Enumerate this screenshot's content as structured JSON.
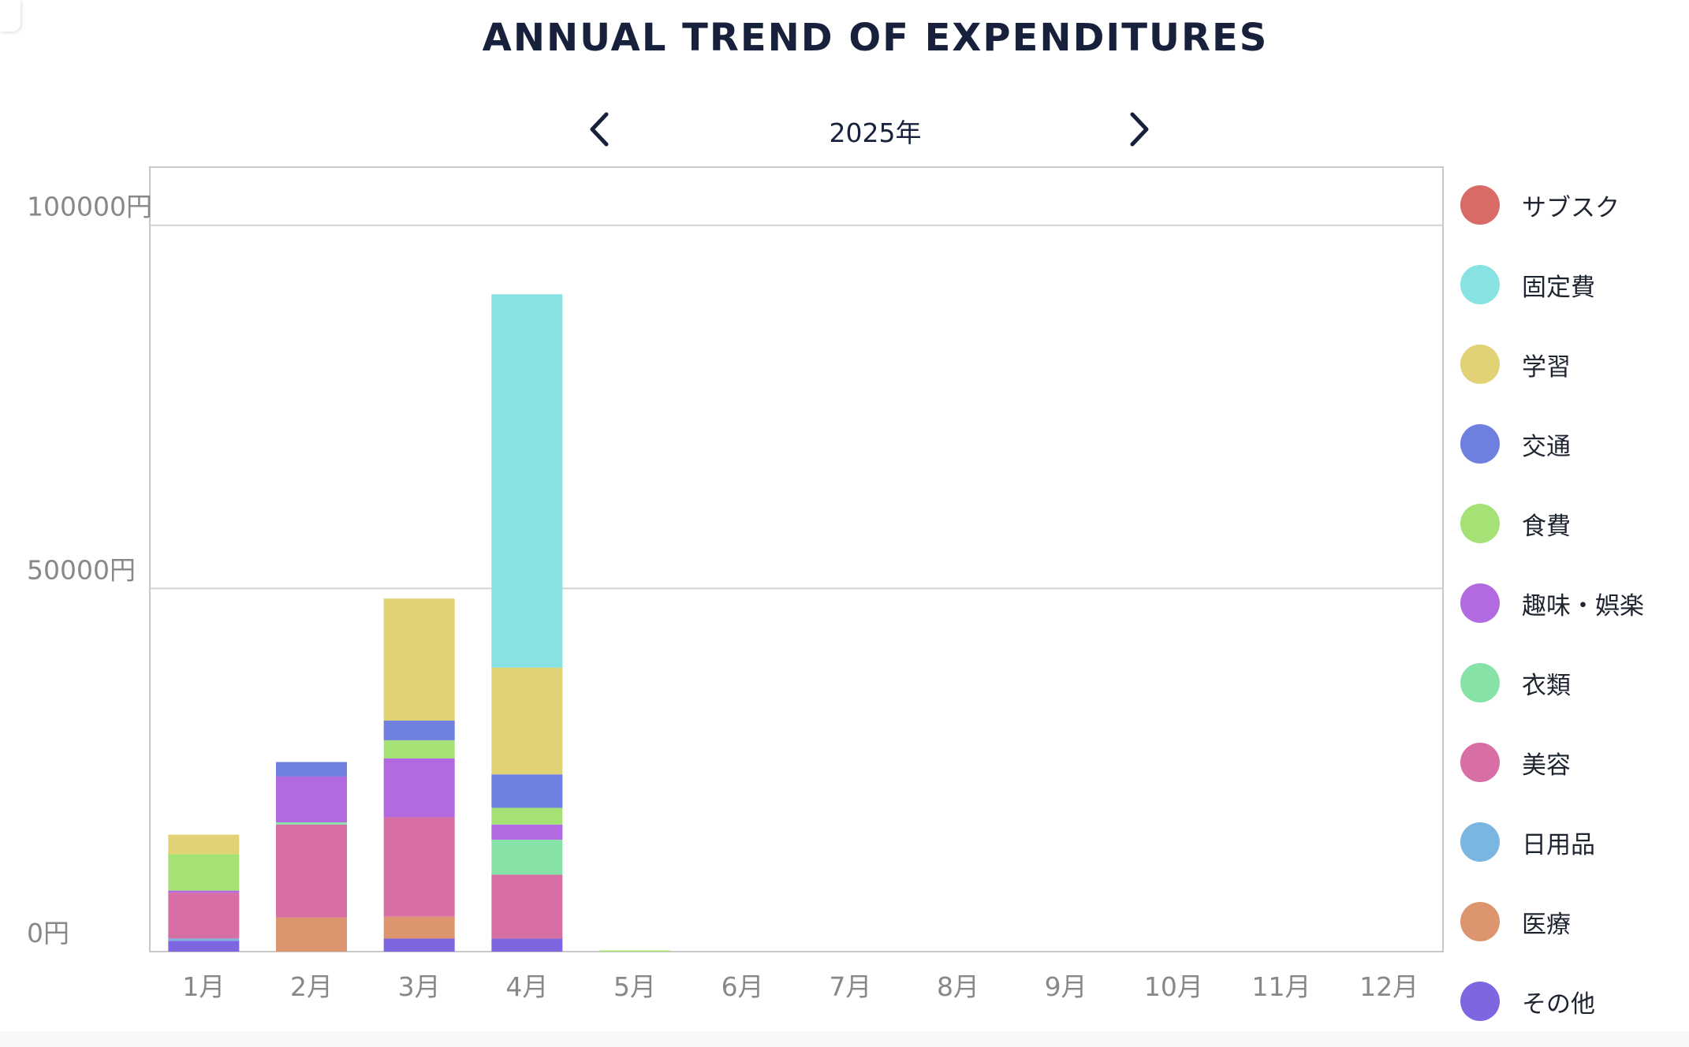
{
  "chart_data": {
    "type": "bar",
    "stacked": true,
    "title": "ANNUAL TREND OF EXPENDITURES",
    "period_label": "2025年",
    "categories": [
      "1月",
      "2月",
      "3月",
      "4月",
      "5月",
      "6月",
      "7月",
      "8月",
      "9月",
      "10月",
      "11月",
      "12月"
    ],
    "y_tick_labels": [
      "0円",
      "50000円",
      "100000円"
    ],
    "ylim": [
      0,
      108000
    ],
    "grid": true,
    "legend_position": "right",
    "series": [
      {
        "name": "その他",
        "color": "#7e66e0",
        "values": [
          1500,
          0,
          1800,
          1800,
          0,
          0,
          0,
          0,
          0,
          0,
          0,
          0
        ]
      },
      {
        "name": "医療",
        "color": "#dd9570",
        "values": [
          0,
          4700,
          3000,
          0,
          0,
          0,
          0,
          0,
          0,
          0,
          0,
          0
        ]
      },
      {
        "name": "日用品",
        "color": "#7ab6e0",
        "values": [
          300,
          0,
          0,
          0,
          0,
          0,
          0,
          0,
          0,
          0,
          0,
          0
        ]
      },
      {
        "name": "美容",
        "color": "#d76fa4",
        "values": [
          6300,
          12800,
          13700,
          8800,
          0,
          0,
          0,
          0,
          0,
          0,
          0,
          0
        ]
      },
      {
        "name": "衣類",
        "color": "#87e2a8",
        "values": [
          0,
          300,
          0,
          4800,
          0,
          0,
          0,
          0,
          0,
          0,
          0,
          0
        ]
      },
      {
        "name": "趣味・娯楽",
        "color": "#b16ae0",
        "values": [
          300,
          6300,
          8100,
          2100,
          0,
          0,
          0,
          0,
          0,
          0,
          0,
          0
        ]
      },
      {
        "name": "食費",
        "color": "#a4e275",
        "values": [
          5000,
          0,
          2500,
          2300,
          150,
          0,
          0,
          0,
          0,
          0,
          0,
          0
        ]
      },
      {
        "name": "交通",
        "color": "#6e7fe0",
        "values": [
          0,
          2000,
          2700,
          4600,
          0,
          0,
          0,
          0,
          0,
          0,
          0,
          0
        ]
      },
      {
        "name": "学習",
        "color": "#e0d275",
        "values": [
          2700,
          0,
          16800,
          14700,
          0,
          0,
          0,
          0,
          0,
          0,
          0,
          0
        ]
      },
      {
        "name": "固定費",
        "color": "#89e2e2",
        "values": [
          0,
          0,
          0,
          51400,
          0,
          0,
          0,
          0,
          0,
          0,
          0,
          0
        ]
      },
      {
        "name": "サブスク",
        "color": "#d96b66",
        "values": [
          0,
          0,
          0,
          0,
          0,
          0,
          0,
          0,
          0,
          0,
          0,
          0
        ]
      }
    ],
    "legend_order": [
      "サブスク",
      "固定費",
      "学習",
      "交通",
      "食費",
      "趣味・娯楽",
      "衣類",
      "美容",
      "日用品",
      "医療",
      "その他"
    ]
  },
  "icons": {
    "prev": "chevron-left-icon",
    "next": "chevron-right-icon"
  },
  "colors": {
    "title": "#17213b",
    "axis_text": "#888888",
    "grid": "#d3d3d3",
    "border": "#c8c8c8"
  }
}
